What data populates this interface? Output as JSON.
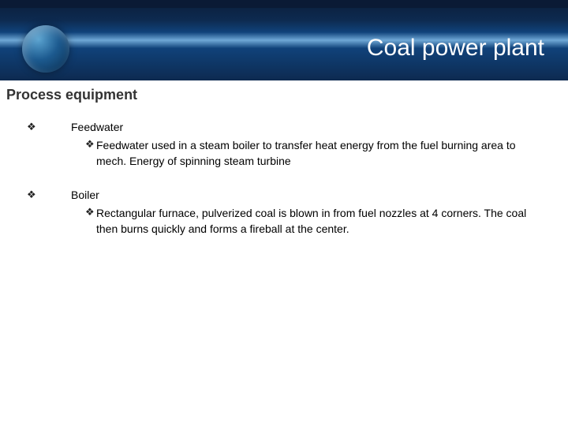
{
  "header": {
    "title": "Coal power plant",
    "title_color": "#ffffff",
    "title_fontsize": 30,
    "gradient_colors": [
      "#0a1e3a",
      "#0d2a50",
      "#10427a",
      "#6fa8d6"
    ],
    "logo_colors": [
      "#5aa3d0",
      "#1c5a8f",
      "#0a2a4a"
    ]
  },
  "subtitle": {
    "text": "Process equipment",
    "color": "#333333",
    "fontsize": 18
  },
  "bullet_char": "❖",
  "items": [
    {
      "heading": "Feedwater",
      "text": "Feedwater used in a steam boiler to transfer heat energy from the fuel burning area to mech. Energy of spinning steam turbine"
    },
    {
      "heading": "Boiler",
      "text": "Rectangular furnace, pulverized coal is blown in from fuel nozzles at 4 corners. The coal then burns quickly and forms a fireball at the center."
    }
  ],
  "body_text_color": "#000000",
  "body_fontsize": 14,
  "background_color": "#ffffff"
}
